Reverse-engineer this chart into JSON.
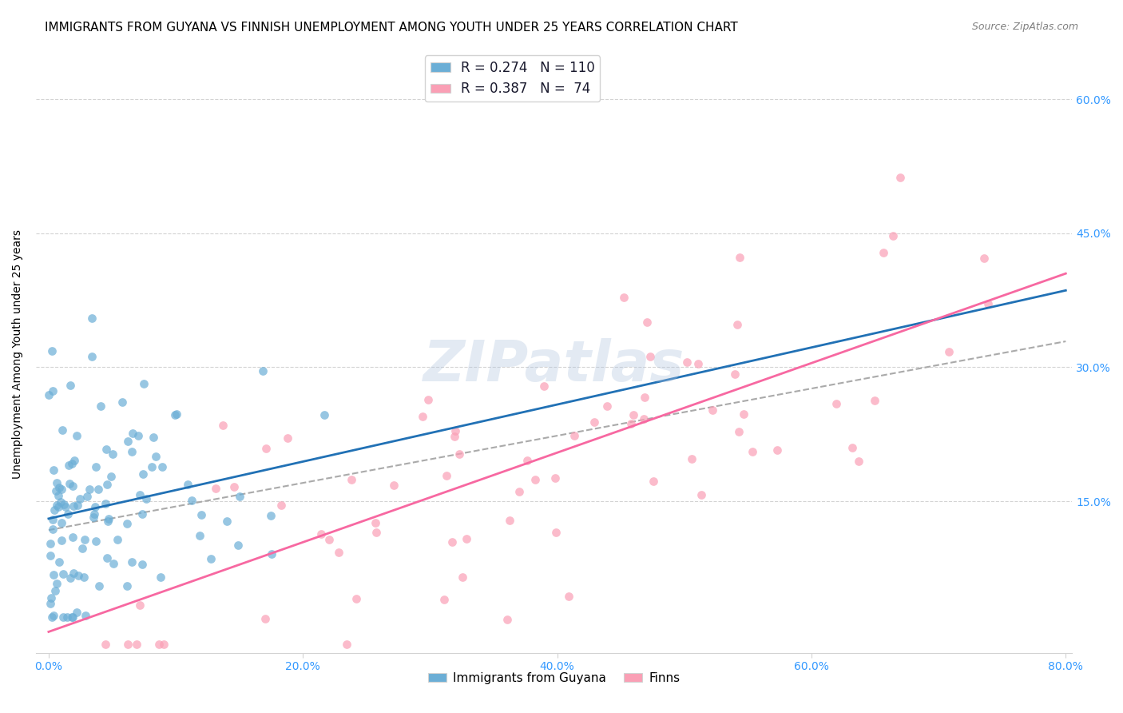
{
  "title": "IMMIGRANTS FROM GUYANA VS FINNISH UNEMPLOYMENT AMONG YOUTH UNDER 25 YEARS CORRELATION CHART",
  "source": "Source: ZipAtlas.com",
  "xlabel_ticks": [
    "0.0%",
    "20.0%",
    "40.0%",
    "60.0%",
    "80.0%"
  ],
  "ylabel_ticks": [
    "15.0%",
    "30.0%",
    "45.0%",
    "60.0%"
  ],
  "ylabel_label": "Unemployment Among Youth under 25 years",
  "xlim": [
    -0.01,
    0.805
  ],
  "ylim": [
    -0.02,
    0.65
  ],
  "blue_color": "#6baed6",
  "pink_color": "#fa9fb5",
  "blue_line_color": "#2171b5",
  "pink_line_color": "#f768a1",
  "dashed_line_color": "#aaaaaa",
  "legend_R_blue": "0.274",
  "legend_N_blue": "110",
  "legend_R_pink": "0.387",
  "legend_N_pink": "74",
  "watermark": "ZIPatlas",
  "title_fontsize": 11,
  "source_fontsize": 9,
  "tick_label_color": "#3399ff",
  "tick_label_fontsize": 10,
  "ylabel_fontsize": 10,
  "seed_blue": 42,
  "seed_pink": 123
}
